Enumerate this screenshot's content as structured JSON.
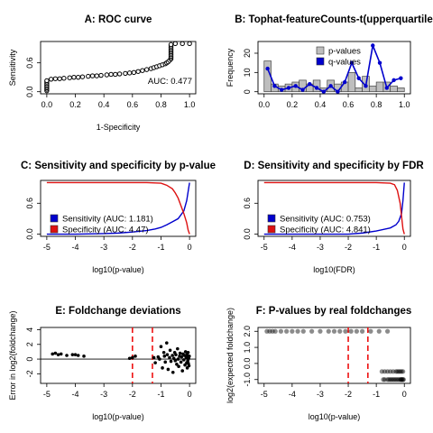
{
  "figure": {
    "background": "#ffffff"
  },
  "chart_data": [
    {
      "id": "A",
      "type": "scatter",
      "title": "A: ROC curve",
      "xlabel": "1-Specificity",
      "ylabel": "Sensitivity",
      "xlim": [
        0,
        1
      ],
      "ylim": [
        0,
        1
      ],
      "xticks": [
        0.0,
        0.2,
        0.4,
        0.6,
        0.8,
        1.0
      ],
      "xtick_labels": [
        "0.0",
        "0.2",
        "0.4",
        "0.6",
        "0.8",
        "1.0"
      ],
      "yticks": [
        0.0,
        0.6
      ],
      "ytick_labels": [
        "0.0",
        "0.6"
      ],
      "annotation": "AUC: 0.477",
      "marker": "open-circle",
      "points": [
        [
          0.0,
          0.02
        ],
        [
          0.0,
          0.05
        ],
        [
          0.0,
          0.08
        ],
        [
          0.0,
          0.11
        ],
        [
          0.0,
          0.14
        ],
        [
          0.0,
          0.17
        ],
        [
          0.0,
          0.2
        ],
        [
          0.0,
          0.23
        ],
        [
          0.03,
          0.26
        ],
        [
          0.06,
          0.27
        ],
        [
          0.09,
          0.27
        ],
        [
          0.12,
          0.28
        ],
        [
          0.16,
          0.29
        ],
        [
          0.19,
          0.3
        ],
        [
          0.22,
          0.3
        ],
        [
          0.25,
          0.31
        ],
        [
          0.29,
          0.32
        ],
        [
          0.32,
          0.33
        ],
        [
          0.35,
          0.33
        ],
        [
          0.38,
          0.34
        ],
        [
          0.42,
          0.35
        ],
        [
          0.45,
          0.36
        ],
        [
          0.48,
          0.36
        ],
        [
          0.51,
          0.37
        ],
        [
          0.55,
          0.38
        ],
        [
          0.58,
          0.39
        ],
        [
          0.61,
          0.4
        ],
        [
          0.64,
          0.42
        ],
        [
          0.67,
          0.44
        ],
        [
          0.7,
          0.46
        ],
        [
          0.73,
          0.48
        ],
        [
          0.75,
          0.5
        ],
        [
          0.77,
          0.52
        ],
        [
          0.79,
          0.54
        ],
        [
          0.81,
          0.56
        ],
        [
          0.83,
          0.58
        ],
        [
          0.84,
          0.6
        ],
        [
          0.85,
          0.62
        ],
        [
          0.86,
          0.65
        ],
        [
          0.87,
          0.68
        ],
        [
          0.87,
          0.71
        ],
        [
          0.87,
          0.74
        ],
        [
          0.87,
          0.77
        ],
        [
          0.87,
          0.8
        ],
        [
          0.87,
          0.83
        ],
        [
          0.87,
          0.86
        ],
        [
          0.87,
          0.89
        ],
        [
          0.87,
          0.92
        ],
        [
          0.87,
          0.95
        ],
        [
          0.87,
          0.98
        ],
        [
          0.9,
          1.0
        ],
        [
          0.95,
          1.0
        ],
        [
          1.0,
          1.0
        ]
      ]
    },
    {
      "id": "B",
      "type": "bar",
      "title": "B: Tophat-featureCounts-t(upperquartile",
      "xlabel": "",
      "ylabel": "Frequency",
      "xlim": [
        0,
        1
      ],
      "ylim": [
        0,
        25
      ],
      "xticks": [
        0.0,
        0.2,
        0.4,
        0.6,
        0.8,
        1.0
      ],
      "xtick_labels": [
        "0.0",
        "0.2",
        "0.4",
        "0.6",
        "0.8",
        "1.0"
      ],
      "yticks": [
        0,
        10,
        20
      ],
      "ytick_labels": [
        "0",
        "10",
        "20"
      ],
      "bin_width": 0.05,
      "bin_starts": [
        0.0,
        0.05,
        0.1,
        0.15,
        0.2,
        0.25,
        0.3,
        0.35,
        0.4,
        0.45,
        0.5,
        0.55,
        0.6,
        0.65,
        0.7,
        0.75,
        0.8,
        0.85,
        0.9,
        0.95
      ],
      "series": [
        {
          "name": "p-values",
          "kind": "histogram",
          "color": "#bebebe",
          "values": [
            16,
            4,
            3,
            4,
            5,
            6,
            4,
            6,
            2,
            6,
            4,
            5,
            10,
            2,
            8,
            3,
            5,
            5,
            3,
            2
          ]
        },
        {
          "name": "q-values",
          "kind": "line",
          "color": "#0000cd",
          "x": [
            0.025,
            0.075,
            0.125,
            0.175,
            0.225,
            0.275,
            0.325,
            0.375,
            0.425,
            0.475,
            0.525,
            0.575,
            0.625,
            0.675,
            0.725,
            0.775,
            0.825,
            0.875,
            0.925,
            0.975
          ],
          "values": [
            12,
            3,
            1,
            2,
            3,
            1,
            4,
            2,
            0,
            3,
            0,
            5,
            15,
            7,
            3,
            24,
            15,
            2,
            6,
            7
          ]
        }
      ],
      "legend": {
        "placement": "top-right",
        "entries": [
          "p-values",
          "q-values"
        ]
      }
    },
    {
      "id": "C",
      "type": "line",
      "title": "C: Sensitivity and specificity by p-value",
      "xlabel": "log10(p-value)",
      "ylabel": "",
      "xlim": [
        -5,
        0
      ],
      "ylim": [
        0,
        1
      ],
      "xticks": [
        -5,
        -4,
        -3,
        -2,
        -1,
        0
      ],
      "xtick_labels": [
        "-5",
        "-4",
        "-3",
        "-2",
        "-1",
        "0"
      ],
      "yticks": [
        0.0,
        0.6
      ],
      "ytick_labels": [
        "0.0",
        "0.6"
      ],
      "series": [
        {
          "name": "Sensitivity (AUC: 1.181)",
          "color": "#0000cd",
          "x": [
            -5,
            -4,
            -3,
            -2.5,
            -2,
            -1.5,
            -1.2,
            -1.0,
            -0.8,
            -0.6,
            -0.4,
            -0.2,
            -0.1,
            0
          ],
          "values": [
            0.0,
            0.0,
            0.01,
            0.02,
            0.04,
            0.07,
            0.1,
            0.13,
            0.18,
            0.24,
            0.3,
            0.45,
            0.65,
            1.0
          ]
        },
        {
          "name": "Specificity (AUC: 4.47)",
          "color": "#dd1111",
          "x": [
            -5,
            -4,
            -3,
            -2,
            -1.5,
            -1.0,
            -0.8,
            -0.6,
            -0.5,
            -0.4,
            -0.3,
            -0.2,
            -0.1,
            -0.05,
            0
          ],
          "values": [
            1.0,
            1.0,
            1.0,
            1.0,
            1.0,
            0.99,
            0.95,
            0.88,
            0.8,
            0.7,
            0.55,
            0.4,
            0.22,
            0.08,
            0.0
          ]
        }
      ],
      "legend": {
        "placement": "bottom-left",
        "entries": [
          "Sensitivity (AUC: 1.181)",
          "Specificity (AUC: 4.47)"
        ]
      }
    },
    {
      "id": "D",
      "type": "line",
      "title": "D: Sensitivity and specificity by FDR",
      "xlabel": "log10(FDR)",
      "ylabel": "",
      "xlim": [
        -5,
        0
      ],
      "ylim": [
        0,
        1
      ],
      "xticks": [
        -5,
        -4,
        -3,
        -2,
        -1,
        0
      ],
      "xtick_labels": [
        "-5",
        "-4",
        "-3",
        "-2",
        "-1",
        "0"
      ],
      "yticks": [
        0.0,
        0.6
      ],
      "ytick_labels": [
        "0.0",
        "0.6"
      ],
      "series": [
        {
          "name": "Sensitivity (AUC: 0.753)",
          "color": "#0000cd",
          "x": [
            -5,
            -4,
            -3,
            -2,
            -1.5,
            -1.0,
            -0.5,
            -0.3,
            -0.2,
            -0.1,
            -0.05,
            0
          ],
          "values": [
            0.0,
            0.0,
            0.0,
            0.0,
            0.02,
            0.06,
            0.12,
            0.18,
            0.25,
            0.4,
            0.65,
            1.0
          ]
        },
        {
          "name": "Specificity (AUC: 4.841)",
          "color": "#dd1111",
          "x": [
            -5,
            -4,
            -3,
            -2,
            -1.0,
            -0.5,
            -0.35,
            -0.25,
            -0.15,
            -0.1,
            -0.05,
            0
          ],
          "values": [
            1.0,
            1.0,
            1.0,
            1.0,
            1.0,
            0.99,
            0.96,
            0.85,
            0.6,
            0.35,
            0.1,
            0.0
          ]
        }
      ],
      "legend": {
        "placement": "bottom-left",
        "entries": [
          "Sensitivity (AUC: 0.753)",
          "Specificity (AUC: 4.841)"
        ]
      }
    },
    {
      "id": "E",
      "type": "scatter",
      "title": "E: Foldchange deviations",
      "xlabel": "log10(p-value)",
      "ylabel": "Error in log2(foldchange)",
      "xlim": [
        -5,
        0
      ],
      "ylim": [
        -3,
        4
      ],
      "xticks": [
        -5,
        -4,
        -3,
        -2,
        -1,
        0
      ],
      "xtick_labels": [
        "-5",
        "-4",
        "-3",
        "-2",
        "-1",
        "0"
      ],
      "yticks": [
        -2,
        0,
        2,
        4
      ],
      "ytick_labels": [
        "-2",
        "0",
        "2",
        "4"
      ],
      "hlines": [
        0
      ],
      "vlines": [
        -2,
        -1.3
      ],
      "vline_color": "#ee1111",
      "points": [
        [
          -4.8,
          0.7
        ],
        [
          -4.7,
          0.8
        ],
        [
          -4.6,
          0.6
        ],
        [
          -4.5,
          0.7
        ],
        [
          -4.3,
          0.5
        ],
        [
          -4.1,
          0.6
        ],
        [
          -4.0,
          0.6
        ],
        [
          -3.9,
          0.5
        ],
        [
          -3.7,
          0.4
        ],
        [
          -2.1,
          0.1
        ],
        [
          -2.0,
          0.2
        ],
        [
          -1.9,
          0.4
        ],
        [
          -1.25,
          0.2
        ],
        [
          -1.2,
          -0.5
        ],
        [
          -1.1,
          0.3
        ],
        [
          -1.05,
          0.0
        ],
        [
          -1.0,
          1.7
        ],
        [
          -0.95,
          -1.2
        ],
        [
          -0.9,
          0.9
        ],
        [
          -0.88,
          0.4
        ],
        [
          -0.85,
          -0.4
        ],
        [
          -0.8,
          2.2
        ],
        [
          -0.78,
          0.6
        ],
        [
          -0.75,
          -1.4
        ],
        [
          -0.7,
          0.2
        ],
        [
          -0.68,
          1.2
        ],
        [
          -0.65,
          -0.3
        ],
        [
          -0.6,
          0.5
        ],
        [
          -0.58,
          -1.8
        ],
        [
          -0.55,
          0.1
        ],
        [
          -0.52,
          0.9
        ],
        [
          -0.5,
          -0.2
        ],
        [
          -0.48,
          0.6
        ],
        [
          -0.45,
          -0.7
        ],
        [
          -0.42,
          1.4
        ],
        [
          -0.4,
          0.0
        ],
        [
          -0.38,
          -1.0
        ],
        [
          -0.35,
          0.4
        ],
        [
          -0.33,
          0.8
        ],
        [
          -0.3,
          -0.4
        ],
        [
          -0.28,
          0.3
        ],
        [
          -0.25,
          -1.6
        ],
        [
          -0.23,
          0.7
        ],
        [
          -0.2,
          -0.1
        ],
        [
          -0.18,
          0.5
        ],
        [
          -0.16,
          -0.8
        ],
        [
          -0.14,
          1.0
        ],
        [
          -0.12,
          0.2
        ],
        [
          -0.1,
          -0.5
        ],
        [
          -0.09,
          0.6
        ],
        [
          -0.08,
          -1.2
        ],
        [
          -0.07,
          0.3
        ],
        [
          -0.06,
          -0.2
        ],
        [
          -0.05,
          0.9
        ],
        [
          -0.04,
          -0.6
        ],
        [
          -0.03,
          0.1
        ],
        [
          -0.02,
          -0.9
        ],
        [
          -0.01,
          0.4
        ]
      ]
    },
    {
      "id": "F",
      "type": "scatter",
      "title": "F: P-values by real foldchanges",
      "xlabel": "log10(p-value)",
      "ylabel": "log2(expected foldchange)",
      "xlim": [
        -5,
        0
      ],
      "ylim": [
        -1.1,
        2.1
      ],
      "xticks": [
        -5,
        -4,
        -3,
        -2,
        -1,
        0
      ],
      "xtick_labels": [
        "-5",
        "-4",
        "-3",
        "-2",
        "-1",
        "0"
      ],
      "yticks": [
        -1.0,
        0.0,
        1.0,
        2.0
      ],
      "ytick_labels": [
        "-1.0",
        "0.0",
        "1.0",
        "2.0"
      ],
      "vlines": [
        -2,
        -1.3
      ],
      "vline_color": "#ee1111",
      "points": [
        [
          -4.9,
          2.0
        ],
        [
          -4.8,
          2.0
        ],
        [
          -4.7,
          2.0
        ],
        [
          -4.6,
          2.0
        ],
        [
          -4.4,
          2.0
        ],
        [
          -4.2,
          2.0
        ],
        [
          -4.0,
          2.0
        ],
        [
          -3.8,
          2.0
        ],
        [
          -3.6,
          2.0
        ],
        [
          -3.3,
          2.0
        ],
        [
          -3.0,
          2.0
        ],
        [
          -2.7,
          2.0
        ],
        [
          -2.5,
          2.0
        ],
        [
          -2.3,
          2.0
        ],
        [
          -2.1,
          2.0
        ],
        [
          -1.9,
          2.0
        ],
        [
          -1.7,
          2.0
        ],
        [
          -1.5,
          2.0
        ],
        [
          -1.2,
          2.0
        ],
        [
          -0.9,
          2.0
        ],
        [
          -0.6,
          2.0
        ],
        [
          -0.8,
          -0.5
        ],
        [
          -0.7,
          -0.5
        ],
        [
          -0.6,
          -0.5
        ],
        [
          -0.5,
          -0.5
        ],
        [
          -0.4,
          -0.5
        ],
        [
          -0.3,
          -0.5
        ],
        [
          -0.25,
          -0.5
        ],
        [
          -0.2,
          -0.5
        ],
        [
          -0.15,
          -0.5
        ],
        [
          -0.1,
          -0.5
        ],
        [
          -0.05,
          -0.5
        ],
        [
          -0.75,
          -1.0
        ],
        [
          -0.6,
          -1.0
        ],
        [
          -0.5,
          -1.0
        ],
        [
          -0.45,
          -1.0
        ],
        [
          -0.4,
          -1.0
        ],
        [
          -0.35,
          -1.0
        ],
        [
          -0.3,
          -1.0
        ],
        [
          -0.25,
          -1.0
        ],
        [
          -0.2,
          -1.0
        ],
        [
          -0.15,
          -1.0
        ],
        [
          -0.12,
          -1.0
        ],
        [
          -0.1,
          -1.0
        ],
        [
          -0.08,
          -1.0
        ],
        [
          -0.05,
          -1.0
        ],
        [
          -0.03,
          -1.0
        ],
        [
          -0.7,
          -1.0
        ],
        [
          -0.55,
          -1.0
        ]
      ]
    }
  ]
}
